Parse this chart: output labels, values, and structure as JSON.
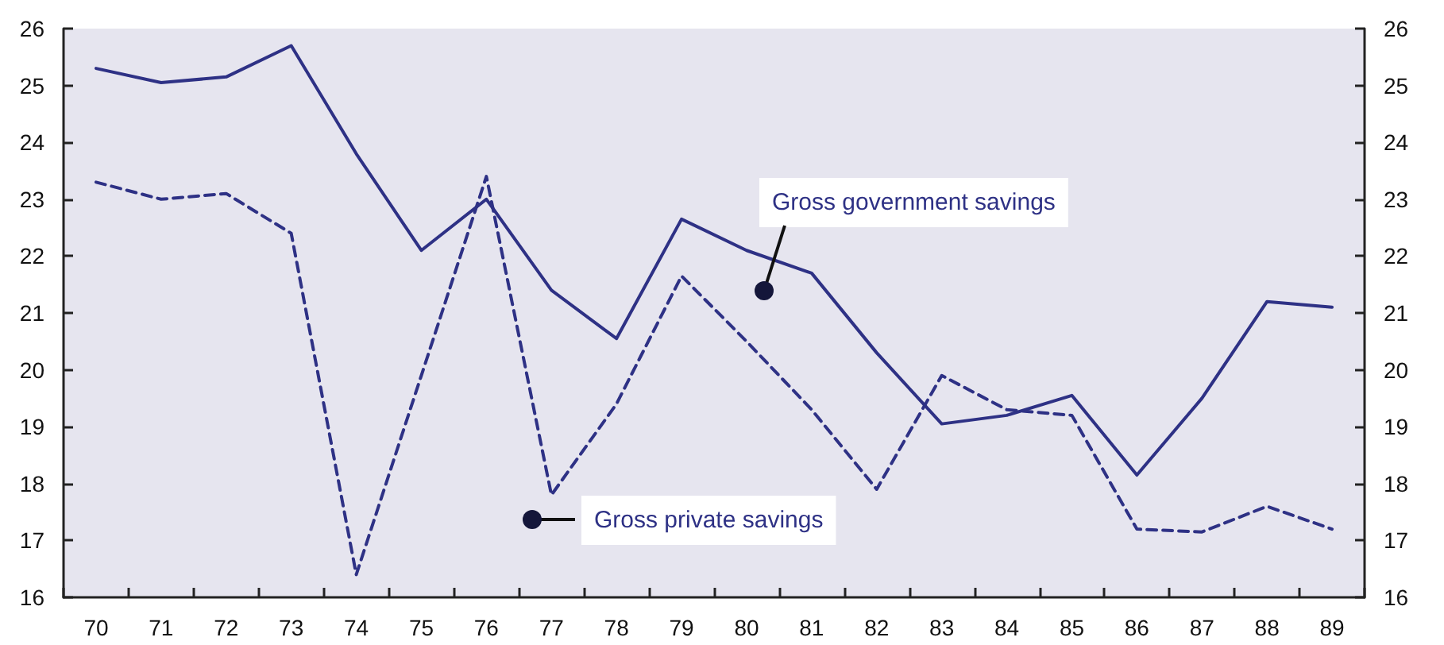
{
  "chart_data": {
    "type": "line",
    "categories": [
      "70",
      "71",
      "72",
      "73",
      "74",
      "75",
      "76",
      "77",
      "78",
      "79",
      "80",
      "81",
      "82",
      "83",
      "84",
      "85",
      "86",
      "87",
      "88",
      "89"
    ],
    "series": [
      {
        "name": "Gross government savings",
        "color": "#2e3185",
        "line_style": "solid",
        "values": [
          25.3,
          25.05,
          25.15,
          25.7,
          23.8,
          22.1,
          23.0,
          21.4,
          20.55,
          22.65,
          22.1,
          21.7,
          20.3,
          19.05,
          19.2,
          19.55,
          18.15,
          19.5,
          21.2,
          21.1
        ]
      },
      {
        "name": "Gross private savings",
        "color": "#2e3185",
        "line_style": "dashed",
        "values": [
          23.3,
          23.0,
          23.1,
          22.4,
          16.4,
          19.9,
          23.4,
          17.8,
          19.4,
          21.65,
          20.5,
          19.3,
          17.9,
          19.9,
          19.3,
          19.2,
          17.2,
          17.15,
          17.6,
          17.2
        ]
      }
    ],
    "ylim": [
      16,
      26
    ],
    "yticks": [
      16,
      17,
      18,
      19,
      20,
      21,
      22,
      23,
      24,
      25,
      26
    ],
    "y2lim": [
      16,
      26
    ],
    "y2ticks": [
      16,
      17,
      18,
      19,
      20,
      21,
      22,
      23,
      24,
      25,
      26
    ],
    "grid": false,
    "legend": false,
    "marker": "none"
  }
}
